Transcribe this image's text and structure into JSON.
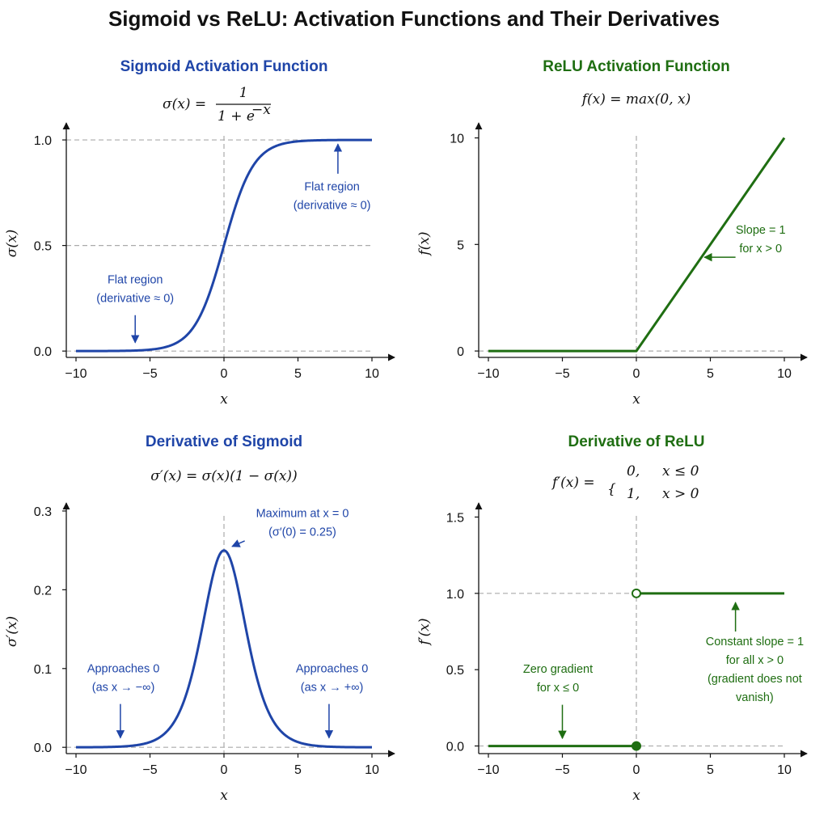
{
  "title": "Sigmoid vs ReLU: Activation Functions and Their Derivatives",
  "colors": {
    "sigmoid": "#1f45a8",
    "relu": "#1f6e12",
    "grid": "#aaaaaa",
    "axis": "#111111"
  },
  "chart_data": [
    {
      "id": "sigmoid",
      "type": "line",
      "title": "Sigmoid Activation Function",
      "formula": "σ(x) = 1 / (1 + e^(−x))",
      "formula_parts": {
        "lhs": "σ(x) =",
        "num": "1",
        "den": "1 + e",
        "den_exp": "−x"
      },
      "xlabel": "x",
      "ylabel": "σ(x)",
      "xlim": [
        -10,
        10
      ],
      "ylim": [
        -0.03,
        1.05
      ],
      "xticks": [
        -10,
        -5,
        0,
        5,
        10
      ],
      "xtick_labels": [
        "−10",
        "−5",
        "0",
        "5",
        "10"
      ],
      "yticks": [
        0,
        0.5,
        1.0
      ],
      "ytick_labels": [
        "0.0",
        "0.5",
        "1.0"
      ],
      "hlines": [
        0,
        0.5,
        1.0
      ],
      "vline": 0,
      "series": [
        {
          "x": [
            -10,
            -9,
            -8,
            -7,
            -6,
            -5,
            -4,
            -3,
            -2,
            -1,
            0,
            1,
            2,
            3,
            4,
            5,
            6,
            7,
            8,
            9,
            10
          ],
          "y": [
            0.0,
            0.0001,
            0.0003,
            0.0009,
            0.0025,
            0.0067,
            0.018,
            0.0474,
            0.1192,
            0.2689,
            0.5,
            0.7311,
            0.8808,
            0.9526,
            0.982,
            0.9933,
            0.9975,
            0.9991,
            0.9997,
            0.9999,
            1.0
          ]
        }
      ],
      "annotations": [
        {
          "lines": [
            "Flat region",
            "(derivative ≈ 0)"
          ],
          "tx": -6,
          "ty": 0.32,
          "ax": -6,
          "ay0": 0.17,
          "ay1": 0.04
        },
        {
          "lines": [
            "Flat region",
            "(derivative ≈ 0)"
          ],
          "tx": 7.3,
          "ty": 0.76,
          "ax": 7.7,
          "ay0": 0.84,
          "ay1": 0.98
        }
      ]
    },
    {
      "id": "relu",
      "type": "line",
      "title": "ReLU Activation Function",
      "formula": "f(x) = max(0, x)",
      "xlabel": "x",
      "ylabel": "f(x)",
      "xlim": [
        -10,
        10
      ],
      "ylim": [
        -0.3,
        10.4
      ],
      "xticks": [
        -10,
        -5,
        0,
        5,
        10
      ],
      "xtick_labels": [
        "−10",
        "−5",
        "0",
        "5",
        "10"
      ],
      "yticks": [
        0,
        5,
        10
      ],
      "ytick_labels": [
        "0",
        "5",
        "10"
      ],
      "hlines": [
        0
      ],
      "vline": 0,
      "series": [
        {
          "x": [
            -10,
            0,
            10
          ],
          "y": [
            0,
            0,
            10
          ]
        }
      ],
      "annotations": [
        {
          "lines": [
            "Slope = 1",
            "for x > 0"
          ],
          "tx": 8.4,
          "ty": 5.5,
          "ax": 6.7,
          "ay0": 4.4,
          "ay1": 4.4,
          "ax1": 4.6
        }
      ]
    },
    {
      "id": "sigmoid-derivative",
      "type": "line",
      "title": "Derivative of Sigmoid",
      "formula": "σ′(x) = σ(x)(1 − σ(x))",
      "xlabel": "x",
      "ylabel": "σ′(x)",
      "xlim": [
        -10,
        10
      ],
      "ylim": [
        -0.008,
        0.302
      ],
      "xticks": [
        -10,
        -5,
        0,
        5,
        10
      ],
      "xtick_labels": [
        "−10",
        "−5",
        "0",
        "5",
        "10"
      ],
      "yticks": [
        0,
        0.1,
        0.2,
        0.3
      ],
      "ytick_labels": [
        "0.0",
        "0.1",
        "0.2",
        "0.3"
      ],
      "hlines": [
        0
      ],
      "vline": 0,
      "series": [
        {
          "x": [
            -10,
            -9,
            -8,
            -7,
            -6,
            -5,
            -4,
            -3,
            -2,
            -1,
            0,
            1,
            2,
            3,
            4,
            5,
            6,
            7,
            8,
            9,
            10
          ],
          "y": [
            0.0,
            0.0001,
            0.0003,
            0.0009,
            0.0025,
            0.0066,
            0.0177,
            0.0452,
            0.105,
            0.1966,
            0.25,
            0.1966,
            0.105,
            0.0452,
            0.0177,
            0.0066,
            0.0025,
            0.0009,
            0.0003,
            0.0001,
            0.0
          ]
        }
      ],
      "annotations": [
        {
          "lines": [
            "Maximum at x = 0",
            "(σ′(0) = 0.25)"
          ],
          "tx": 5.3,
          "ty": 0.292,
          "ax": 1.4,
          "ay0": 0.262,
          "ax1": 0.55,
          "ay1": 0.255
        },
        {
          "lines": [
            "Approaches 0",
            "(as x → −∞)"
          ],
          "tx": -6.8,
          "ty": 0.095,
          "ax": -7,
          "ay0": 0.055,
          "ay1": 0.012
        },
        {
          "lines": [
            "Approaches 0",
            "(as x → +∞)"
          ],
          "tx": 7.3,
          "ty": 0.095,
          "ax": 7.1,
          "ay0": 0.055,
          "ay1": 0.012
        }
      ]
    },
    {
      "id": "relu-derivative",
      "type": "line",
      "title": "Derivative of ReLU",
      "formula": "f′(x) = { 0, x ≤ 0 ; 1, x > 0 }",
      "formula_parts": {
        "lhs": "f′(x) =",
        "case1_val": "0,",
        "case1_cond": "x ≤ 0",
        "case2_val": "1,",
        "case2_cond": "x > 0"
      },
      "xlabel": "x",
      "ylabel": "f′(x)",
      "xlim": [
        -10,
        10
      ],
      "ylim": [
        -0.05,
        1.55
      ],
      "xticks": [
        -10,
        -5,
        0,
        5,
        10
      ],
      "xtick_labels": [
        "−10",
        "−5",
        "0",
        "5",
        "10"
      ],
      "yticks": [
        0,
        0.5,
        1.0,
        1.5
      ],
      "ytick_labels": [
        "0.0",
        "0.5",
        "1.0",
        "1.5"
      ],
      "hlines": [
        0,
        1.0
      ],
      "vline": 0,
      "series": [
        {
          "name": "",
          "x": [
            -10,
            0
          ],
          "y": [
            0,
            0
          ]
        },
        {
          "name": "",
          "x": [
            0,
            10
          ],
          "y": [
            1,
            1
          ]
        }
      ],
      "points": [
        {
          "x": 0,
          "y": 1,
          "style": "open"
        },
        {
          "x": 0,
          "y": 0,
          "style": "filled"
        }
      ],
      "annotations": [
        {
          "lines": [
            "Zero gradient",
            "for x ≤ 0"
          ],
          "tx": -5.3,
          "ty": 0.48,
          "ax": -5,
          "ay0": 0.27,
          "ay1": 0.05
        },
        {
          "lines": [
            "Constant slope = 1",
            "for all x > 0",
            "(gradient does not",
            "vanish)"
          ],
          "tx": 8,
          "ty": 0.66,
          "ax": 6.7,
          "ay0": 0.75,
          "ay1": 0.94
        }
      ]
    }
  ]
}
